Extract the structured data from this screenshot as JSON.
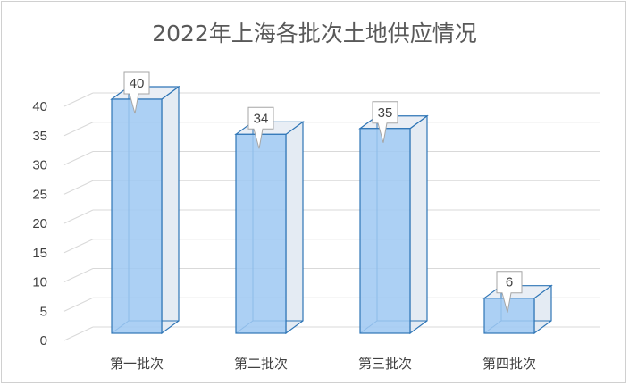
{
  "chart_data": {
    "type": "bar",
    "title": "2022年上海各批次土地供应情况",
    "categories": [
      "第一批次",
      "第二批次",
      "第三批次",
      "第四批次"
    ],
    "values": [
      40,
      34,
      35,
      6
    ],
    "yticks": [
      0,
      5,
      10,
      15,
      20,
      25,
      30,
      35,
      40
    ],
    "ylim": [
      0,
      40
    ],
    "xlabel": "",
    "ylabel": "",
    "grid": true,
    "legend": "none",
    "style": "3d-column",
    "colors": {
      "bar_front": "#9ec8f2",
      "bar_side": "#e4ebf3",
      "bar_top": "#e9eef5",
      "bar_edge": "#2e75b6",
      "grid": "#d9d9d9",
      "text": "#404040",
      "title": "#595959"
    }
  }
}
